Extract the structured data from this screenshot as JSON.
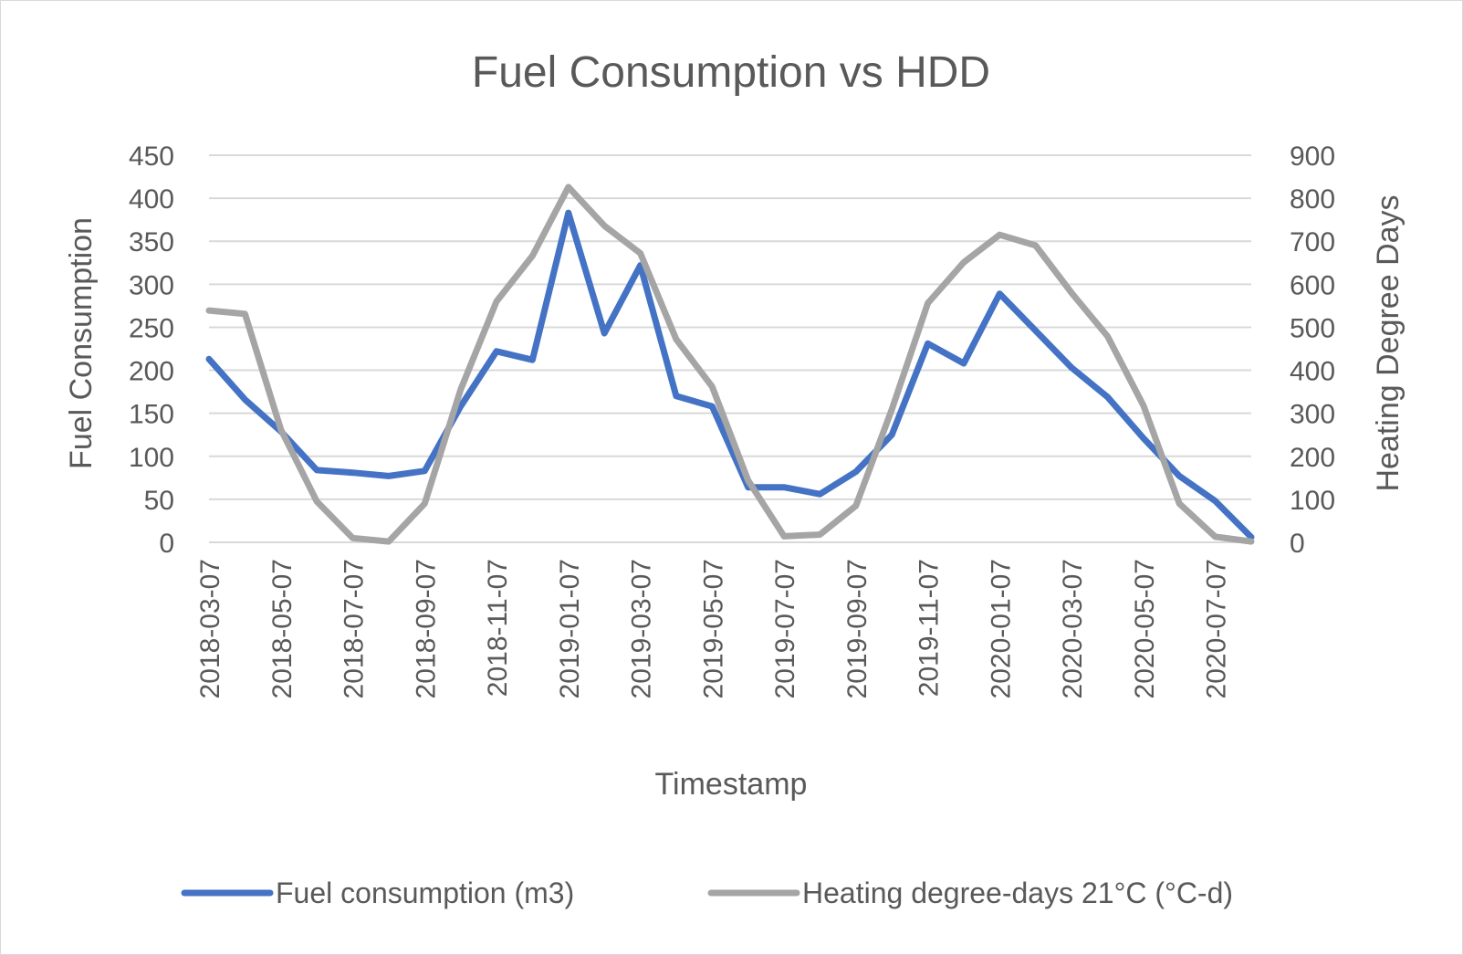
{
  "chart_data": {
    "type": "line",
    "title": "Fuel Consumption vs HDD",
    "xlabel": "Timestamp",
    "ylabel": "Fuel Consumption",
    "y2label": "Heating Degree Days",
    "ylim": [
      0,
      450
    ],
    "y2lim": [
      0,
      900
    ],
    "yticks": [
      0,
      50,
      100,
      150,
      200,
      250,
      300,
      350,
      400,
      450
    ],
    "y2ticks": [
      0,
      100,
      200,
      300,
      400,
      500,
      600,
      700,
      800,
      900
    ],
    "x": [
      "2018-03-07",
      "2018-04-07",
      "2018-05-07",
      "2018-06-07",
      "2018-07-07",
      "2018-08-07",
      "2018-09-07",
      "2018-10-07",
      "2018-11-07",
      "2018-12-07",
      "2019-01-07",
      "2019-02-07",
      "2019-03-07",
      "2019-04-07",
      "2019-05-07",
      "2019-06-07",
      "2019-07-07",
      "2019-08-07",
      "2019-09-07",
      "2019-10-07",
      "2019-11-07",
      "2019-12-07",
      "2020-01-07",
      "2020-02-07",
      "2020-03-07",
      "2020-04-07",
      "2020-05-07",
      "2020-06-07",
      "2020-07-07",
      "2020-08-07"
    ],
    "xtick_labels": [
      "2018-03-07",
      "2018-05-07",
      "2018-07-07",
      "2018-09-07",
      "2018-11-07",
      "2019-01-07",
      "2019-03-07",
      "2019-05-07",
      "2019-07-07",
      "2019-09-07",
      "2019-11-07",
      "2020-01-07",
      "2020-03-07",
      "2020-05-07",
      "2020-07-07"
    ],
    "grid": true,
    "legend_position": "bottom",
    "series": [
      {
        "name": "Fuel consumption (m3)",
        "axis": "left",
        "color": "#4472c4",
        "values": [
          213,
          166,
          129,
          84,
          81,
          77,
          83,
          158,
          222,
          212,
          383,
          243,
          322,
          170,
          158,
          64,
          64,
          56,
          82,
          125,
          231,
          208,
          289,
          246,
          203,
          169,
          121,
          77,
          48,
          6
        ]
      },
      {
        "name": "Heating degree-days 21°C (°C-d)",
        "axis": "right",
        "color": "#a5a5a5",
        "values": [
          539,
          531,
          262,
          95,
          10,
          2,
          90,
          355,
          560,
          666,
          826,
          736,
          672,
          472,
          362,
          144,
          14,
          18,
          85,
          309,
          556,
          651,
          715,
          690,
          580,
          479,
          318,
          90,
          13,
          2
        ]
      }
    ]
  }
}
